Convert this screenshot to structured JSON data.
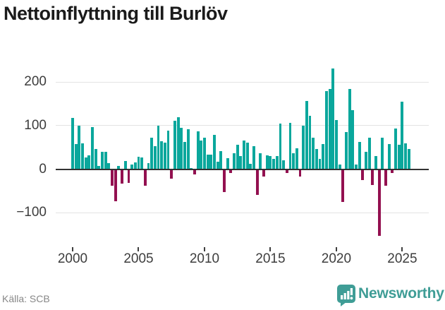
{
  "title": "Nettoinflyttning till Burlöv",
  "source": "Källa: SCB",
  "branding": {
    "name": "Newsworthy"
  },
  "colors": {
    "positive": "#0aa79c",
    "negative": "#931050",
    "grid": "#e3e3e3",
    "axis": "#333333",
    "logo_teal": "#3f9d96"
  },
  "chart_data": {
    "type": "bar",
    "title": "Nettoinflyttning till Burlöv",
    "frequency": "quarterly",
    "period_start": "2000 Q1",
    "period_end": "2025 Q3",
    "ylim": [
      -160,
      245
    ],
    "grid": "horizontal",
    "y_ticks": [
      {
        "label": "200",
        "value": 200,
        "gridline": true
      },
      {
        "label": "100",
        "value": 100,
        "gridline": true
      },
      {
        "label": "0",
        "value": 0,
        "gridline": false
      },
      {
        "label": "−100",
        "value": -100,
        "gridline": true
      }
    ],
    "x_ticks": [
      {
        "label": "2000",
        "quarter_index": 0
      },
      {
        "label": "2005",
        "quarter_index": 20
      },
      {
        "label": "2010",
        "quarter_index": 40
      },
      {
        "label": "2015",
        "quarter_index": 60
      },
      {
        "label": "2020",
        "quarter_index": 80
      },
      {
        "label": "2025",
        "quarter_index": 100
      }
    ],
    "series": [
      {
        "year": 2000,
        "values": [
          118,
          58,
          100,
          60
        ]
      },
      {
        "year": 2001,
        "values": [
          26,
          31,
          97,
          46
        ]
      },
      {
        "year": 2002,
        "values": [
          7,
          40,
          40,
          14
        ]
      },
      {
        "year": 2003,
        "values": [
          -36,
          -72,
          8,
          -31
        ]
      },
      {
        "year": 2004,
        "values": [
          19,
          -30,
          11,
          15
        ]
      },
      {
        "year": 2005,
        "values": [
          29,
          27,
          -36,
          14
        ]
      },
      {
        "year": 2006,
        "values": [
          72,
          53,
          100,
          64
        ]
      },
      {
        "year": 2007,
        "values": [
          61,
          89,
          -20,
          111
        ]
      },
      {
        "year": 2008,
        "values": [
          119,
          95,
          63,
          91
        ]
      },
      {
        "year": 2009,
        "values": [
          2,
          -10,
          87,
          66
        ]
      },
      {
        "year": 2010,
        "values": [
          72,
          34,
          34,
          79
        ]
      },
      {
        "year": 2011,
        "values": [
          17,
          42,
          -51,
          25
        ]
      },
      {
        "year": 2012,
        "values": [
          -8,
          37,
          56,
          30
        ]
      },
      {
        "year": 2013,
        "values": [
          66,
          61,
          12,
          53
        ]
      },
      {
        "year": 2014,
        "values": [
          -57,
          37,
          -16,
          31
        ]
      },
      {
        "year": 2015,
        "values": [
          30,
          24,
          30,
          104
        ]
      },
      {
        "year": 2016,
        "values": [
          21,
          -8,
          107,
          37
        ]
      },
      {
        "year": 2017,
        "values": [
          48,
          -15,
          100,
          157
        ]
      },
      {
        "year": 2018,
        "values": [
          122,
          72,
          46,
          24
        ]
      },
      {
        "year": 2019,
        "values": [
          58,
          180,
          185,
          231
        ]
      },
      {
        "year": 2020,
        "values": [
          113,
          11,
          -74,
          85
        ]
      },
      {
        "year": 2021,
        "values": [
          184,
          136,
          10,
          62
        ]
      },
      {
        "year": 2022,
        "values": [
          -24,
          39,
          72,
          -35
        ]
      },
      {
        "year": 2023,
        "values": [
          30,
          -152,
          72,
          -36
        ]
      },
      {
        "year": 2024,
        "values": [
          58,
          -8,
          93,
          56
        ]
      },
      {
        "year": 2025,
        "values": [
          155,
          60,
          46
        ]
      }
    ]
  }
}
